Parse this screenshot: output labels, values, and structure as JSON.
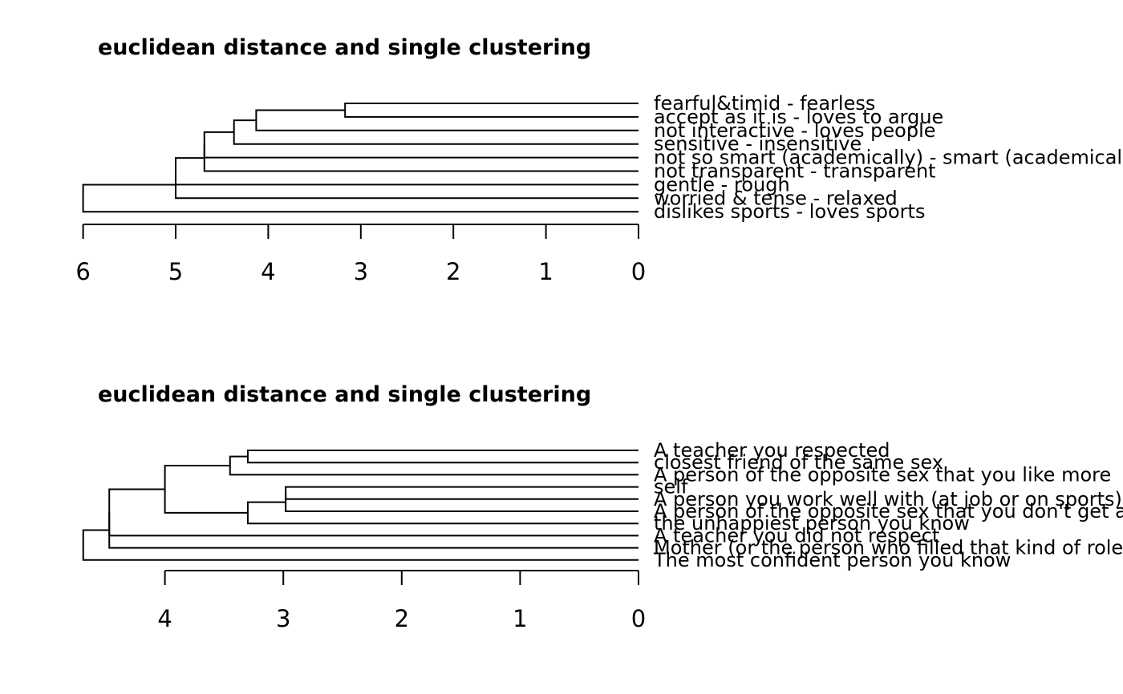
{
  "chart_data": [
    {
      "type": "dendrogram",
      "title": "euclidean distance and single clustering",
      "orientation": "horizontal, leaves on right",
      "xlim": [
        6,
        0
      ],
      "ticks": [
        6,
        5,
        4,
        3,
        2,
        1,
        0
      ],
      "leaves": [
        "fearful&timid - fearless",
        "accept as it is - loves to argue",
        "not interactive - loves people",
        "sensitive - insensitive",
        "not so smart (academically) - smart (academically)",
        "not transparent - transparent",
        "gentle - rough",
        "worried & tense - relaxed",
        "dislikes sports - loves sports"
      ],
      "merges": [
        {
          "a": "L0",
          "b": "L1",
          "height": 3.17
        },
        {
          "a": "M0",
          "b": "L2",
          "height": 4.13
        },
        {
          "a": "M1",
          "b": "L3",
          "height": 4.37
        },
        {
          "a": "M2",
          "b": "L4",
          "height": 4.69
        },
        {
          "a": "M3",
          "b": "L5",
          "height": 4.69
        },
        {
          "a": "M4",
          "b": "L6",
          "height": 5.0
        },
        {
          "a": "M5",
          "b": "L7",
          "height": 5.0
        },
        {
          "a": "M6",
          "b": "L8",
          "height": 6.0
        }
      ]
    },
    {
      "type": "dendrogram",
      "title": "euclidean distance and single clustering",
      "orientation": "horizontal, leaves on right",
      "xlim": [
        4.69,
        0
      ],
      "ticks": [
        4,
        3,
        2,
        1,
        0
      ],
      "leaves": [
        "A teacher you respected",
        "closest friend of the same sex",
        "A person of the opposite sex that you like more",
        "self",
        "A person you work well with (at job or on sports)",
        "A person of the opposite sex that you don't get along with",
        "the unhappiest person you know",
        "A teacher you did not respect",
        "Mother (or the person who filled that kind of role)",
        "The most confident person you know"
      ],
      "merges": [
        {
          "a": "L0",
          "b": "L1",
          "height": 3.3
        },
        {
          "a": "M0",
          "b": "L2",
          "height": 3.45
        },
        {
          "a": "L3",
          "b": "L4",
          "height": 2.98
        },
        {
          "a": "M2",
          "b": "L5",
          "height": 2.98
        },
        {
          "a": "M3",
          "b": "L6",
          "height": 3.3
        },
        {
          "a": "M1",
          "b": "M4",
          "height": 4.0
        },
        {
          "a": "M5",
          "b": "L7",
          "height": 4.47
        },
        {
          "a": "M6",
          "b": "L8",
          "height": 4.47
        },
        {
          "a": "M7",
          "b": "L9",
          "height": 4.69
        }
      ]
    }
  ]
}
